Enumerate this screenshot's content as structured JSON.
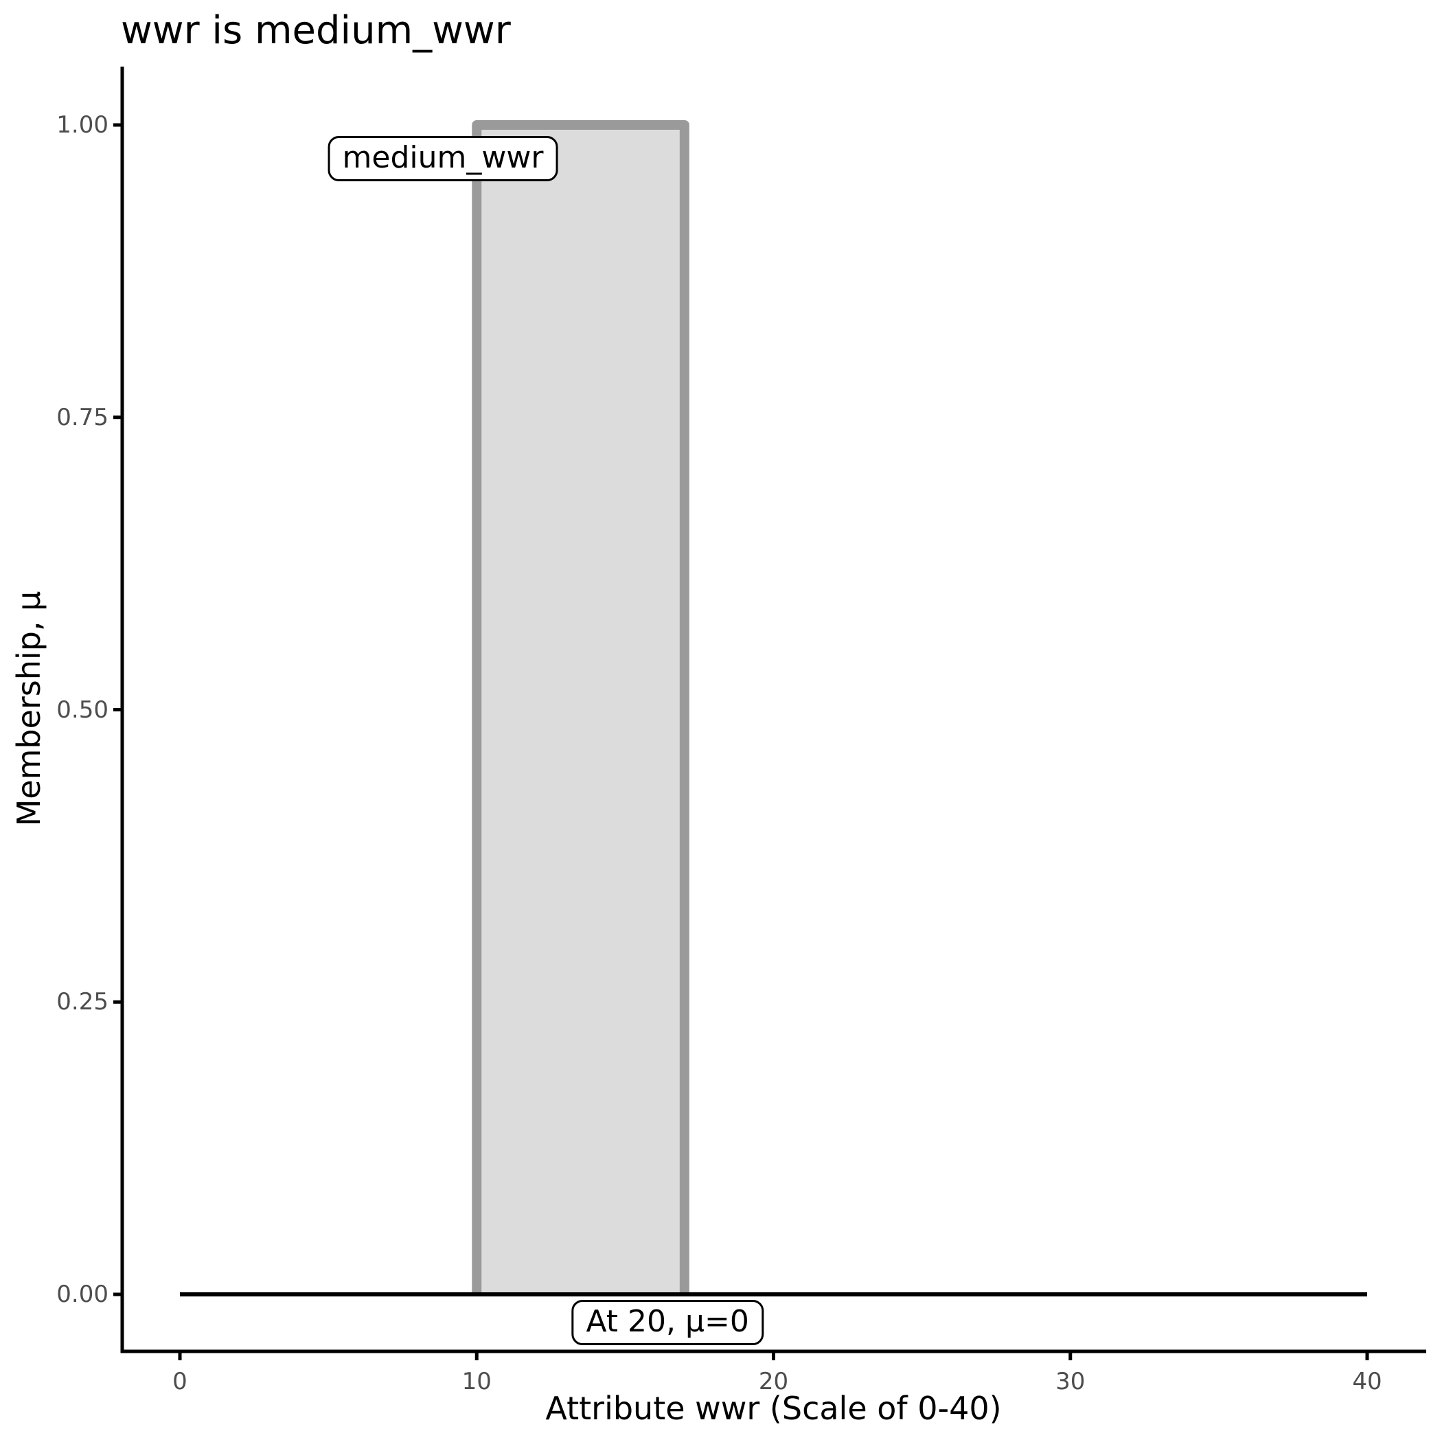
{
  "chart_data": {
    "type": "area",
    "title": "wwr is medium_wwr",
    "xlabel": "Attribute wwr (Scale of 0-40)",
    "ylabel": "Membership, μ",
    "xlim": [
      0,
      40
    ],
    "ylim": [
      0,
      1
    ],
    "grid": false,
    "legend": "none",
    "xtick_values": [
      0,
      10,
      20,
      30,
      40
    ],
    "xtick_labels": [
      "0",
      "10",
      "20",
      "30",
      "40"
    ],
    "ytick_values": [
      0,
      0.25,
      0.5,
      0.75,
      1
    ],
    "ytick_labels": [
      "0.00",
      "0.25",
      "0.50",
      "0.75",
      "1.00"
    ],
    "series": [
      {
        "name": "medium_wwr",
        "shape": "rectangular-membership-function",
        "points": [
          [
            0,
            0
          ],
          [
            10,
            0
          ],
          [
            10,
            1
          ],
          [
            17,
            1
          ],
          [
            17,
            0
          ],
          [
            40,
            0
          ]
        ],
        "set_region": {
          "x_from": 10,
          "x_to": 17,
          "mu": 1
        }
      }
    ],
    "baseline": {
      "y": 0,
      "x_from": 0,
      "x_to": 40
    },
    "annotations": [
      {
        "text": "medium_wwr",
        "x": 8.86,
        "y": 0.971
      },
      {
        "text": "At 20, μ=0",
        "x": 16.43,
        "y": -0.024
      }
    ],
    "colors": {
      "background": "#ffffff",
      "axis_line": "#000000",
      "tick_label": "#4d4d4d",
      "title_text": "#000000",
      "set_fill": "#dcdcdc",
      "set_stroke": "#9a9a9a",
      "baseline_stroke": "#000000",
      "annotation_border": "#000000",
      "annotation_fill": "#ffffff"
    }
  }
}
